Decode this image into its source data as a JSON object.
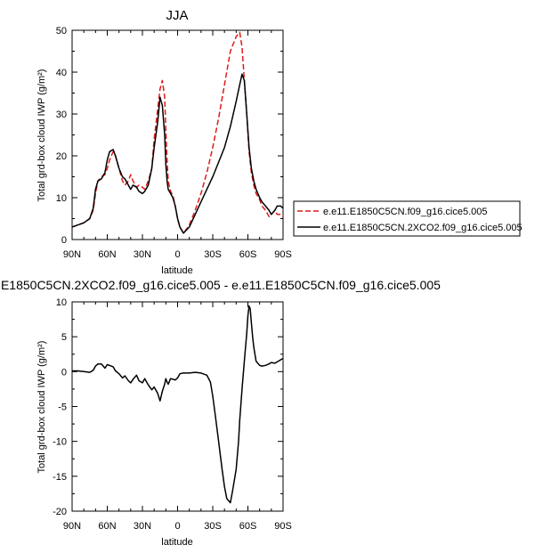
{
  "chart_data": [
    {
      "type": "line",
      "title": "JJA",
      "xlabel": "latitude",
      "ylabel": "Total grd-box cloud IWP (g/m²)",
      "xlim": [
        90,
        -90
      ],
      "ylim": [
        0,
        50
      ],
      "xticks": [
        90,
        60,
        30,
        0,
        -30,
        -60,
        -90
      ],
      "xtick_labels": [
        "90N",
        "60N",
        "30N",
        "0",
        "30S",
        "60S",
        "90S"
      ],
      "yticks": [
        0,
        10,
        20,
        30,
        40,
        50
      ],
      "ytick_labels": [
        "0",
        "10",
        "20",
        "30",
        "40",
        "50"
      ],
      "legend_position": "right",
      "series": [
        {
          "name": "e.e11.E1850C5CN.f09_g16.cice5.005",
          "color": "#e0191a",
          "dash": "dashed",
          "x": [
            90,
            85,
            80,
            75,
            72,
            70,
            68,
            65,
            62,
            60,
            58,
            55,
            53,
            50,
            47,
            45,
            42,
            40,
            38,
            35,
            33,
            30,
            28,
            25,
            22,
            20,
            17,
            15,
            13,
            11,
            10,
            9,
            8,
            6,
            4,
            2,
            0,
            -2,
            -5,
            -10,
            -15,
            -20,
            -25,
            -30,
            -35,
            -40,
            -45,
            -50,
            -53,
            -55,
            -57,
            -59,
            -61,
            -63,
            -65,
            -67,
            -70,
            -72,
            -75,
            -78,
            -80,
            -83,
            -85,
            -88,
            -90
          ],
          "y": [
            3,
            3.5,
            4,
            5,
            7,
            11,
            14,
            15,
            15.5,
            17,
            19,
            21,
            20,
            17,
            14,
            13,
            14,
            15.5,
            14,
            12.5,
            13,
            12.5,
            12,
            14,
            17,
            24,
            31,
            36,
            38,
            34,
            26,
            19,
            14,
            11.5,
            10.5,
            8,
            5,
            3,
            1.5,
            3.5,
            7,
            11,
            16,
            22,
            29,
            37,
            45,
            48.5,
            49.5,
            46,
            38,
            30,
            21,
            16,
            13,
            11,
            9.5,
            8,
            7,
            5.5,
            6,
            7,
            6,
            6,
            5.5
          ]
        },
        {
          "name": "e.e11.E1850C5CN.2XCO2.f09_g16.cice5.005",
          "color": "#000000",
          "dash": "solid",
          "x": [
            90,
            85,
            80,
            75,
            72,
            70,
            68,
            65,
            62,
            60,
            58,
            55,
            53,
            50,
            47,
            45,
            42,
            40,
            38,
            35,
            33,
            30,
            28,
            25,
            22,
            20,
            17,
            15,
            13,
            11,
            10,
            9,
            8,
            6,
            4,
            2,
            0,
            -2,
            -5,
            -10,
            -15,
            -20,
            -25,
            -30,
            -35,
            -40,
            -45,
            -50,
            -53,
            -55,
            -57,
            -59,
            -61,
            -63,
            -65,
            -67,
            -70,
            -72,
            -75,
            -78,
            -80,
            -83,
            -85,
            -88,
            -90
          ],
          "y": [
            3,
            3.5,
            4,
            5,
            7.5,
            12,
            14,
            14.5,
            16,
            19,
            21,
            21.5,
            20,
            17,
            15,
            14.5,
            13,
            12,
            13,
            12.5,
            11.5,
            11,
            11.5,
            13,
            17,
            22,
            28,
            34,
            32,
            25,
            18,
            14,
            12,
            11,
            10,
            8,
            5,
            3,
            1.5,
            3,
            6,
            9,
            12,
            15,
            18.5,
            22,
            27,
            33,
            37,
            39.5,
            38,
            30,
            22,
            17,
            14,
            12,
            10,
            9,
            8,
            7,
            6,
            7,
            8,
            8,
            7.5
          ]
        }
      ]
    },
    {
      "type": "line",
      "title": "e.e11.E1850C5CN.2XCO2.f09_g16.cice5.005 - e.e11.E1850C5CN.f09_g16.cice5.005",
      "xlabel": "latitude",
      "ylabel": "Total grd-box cloud IWP (g/m²)",
      "xlim": [
        90,
        -90
      ],
      "ylim": [
        -20,
        10
      ],
      "xticks": [
        90,
        60,
        30,
        0,
        -30,
        -60,
        -90
      ],
      "xtick_labels": [
        "90N",
        "60N",
        "30N",
        "0",
        "30S",
        "60S",
        "90S"
      ],
      "yticks": [
        -20,
        -15,
        -10,
        -5,
        0,
        5,
        10
      ],
      "ytick_labels": [
        "-20",
        "-15",
        "-10",
        "-5",
        "0",
        "5",
        "10"
      ],
      "series": [
        {
          "color": "#000000",
          "dash": "solid",
          "x": [
            90,
            85,
            80,
            75,
            72,
            70,
            68,
            65,
            62,
            60,
            58,
            55,
            53,
            50,
            47,
            45,
            42,
            40,
            38,
            35,
            33,
            30,
            28,
            25,
            22,
            20,
            17,
            15,
            13,
            11,
            10,
            9,
            8,
            6,
            4,
            2,
            0,
            -2,
            -5,
            -10,
            -15,
            -20,
            -25,
            -28,
            -30,
            -32,
            -35,
            -38,
            -40,
            -42,
            -45,
            -47,
            -50,
            -52,
            -53,
            -55,
            -57,
            -59,
            -60,
            -61,
            -62,
            -63,
            -64,
            -65,
            -67,
            -70,
            -72,
            -75,
            -78,
            -80,
            -83,
            -85,
            -88,
            -90
          ],
          "y": [
            0.1,
            0.1,
            0,
            -0.1,
            0.2,
            0.8,
            1.1,
            1.1,
            0.5,
            1,
            0.9,
            0.7,
            0.1,
            -0.3,
            -0.9,
            -0.6,
            -1.3,
            -1.6,
            -1.1,
            -0.5,
            -1.3,
            -1.6,
            -1.0,
            -1.9,
            -2.6,
            -2.2,
            -3.1,
            -4.2,
            -2.8,
            -1.8,
            -1.0,
            -1.5,
            -1.8,
            -1.0,
            -1.1,
            -1.2,
            -0.9,
            -0.3,
            -0.2,
            -0.2,
            -0.1,
            -0.2,
            -0.5,
            -1.5,
            -3.5,
            -6,
            -10,
            -14,
            -16.5,
            -18.2,
            -18.8,
            -17,
            -14,
            -10,
            -7,
            -2.5,
            1.5,
            5.5,
            8,
            9.4,
            9,
            7,
            5,
            3.5,
            1.5,
            0.9,
            0.8,
            0.9,
            1.1,
            1.3,
            1.2,
            1.4,
            1.7,
            1.9
          ]
        }
      ]
    }
  ]
}
